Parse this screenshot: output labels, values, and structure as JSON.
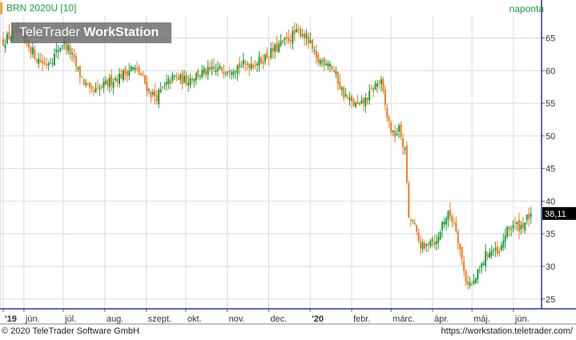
{
  "header": {
    "instrument": "BRN 2020U [10]",
    "period": "naponta"
  },
  "watermark": {
    "brand_light": "TeleTrader",
    "brand_bold": "WorkStation"
  },
  "footer": {
    "copyright": "© 2020 TeleTrader Software GmbH",
    "url": "https://workstation.teletrader.com/"
  },
  "colors": {
    "up": "#1a9e3c",
    "down": "#f27a1a",
    "grid": "#d9dbe8",
    "axis": "#2b3a8c",
    "title": "#1a9e3c",
    "accent": "#f6a21e",
    "last_price_bg": "#000000"
  },
  "chart_data": {
    "type": "candlestick",
    "title": "BRN 2020U [10]",
    "interval": "naponta",
    "last_price_label": "38,11",
    "last_price": 38.11,
    "ylim": [
      23.5,
      68.5
    ],
    "y_ticks": [
      25,
      30,
      35,
      40,
      45,
      50,
      55,
      60,
      65
    ],
    "grid": true,
    "x_ticks": [
      {
        "label": "'19",
        "bold": true,
        "t": 0.0
      },
      {
        "label": "jún.",
        "bold": false,
        "t": 0.5
      },
      {
        "label": "júl.",
        "bold": false,
        "t": 1.45
      },
      {
        "label": "aug.",
        "bold": false,
        "t": 2.45
      },
      {
        "label": "szept.",
        "bold": false,
        "t": 3.45
      },
      {
        "label": "okt.",
        "bold": false,
        "t": 4.4
      },
      {
        "label": "nov.",
        "bold": false,
        "t": 5.4
      },
      {
        "label": "dec.",
        "bold": false,
        "t": 6.4
      },
      {
        "label": "'20",
        "bold": true,
        "t": 7.4
      },
      {
        "label": "febr.",
        "bold": false,
        "t": 8.4
      },
      {
        "label": "márc.",
        "bold": false,
        "t": 9.35
      },
      {
        "label": "ápr.",
        "bold": false,
        "t": 10.35
      },
      {
        "label": "máj.",
        "bold": false,
        "t": 11.3
      },
      {
        "label": "jún.",
        "bold": false,
        "t": 12.3
      }
    ],
    "close_path": [
      {
        "t": 0.0,
        "c": 64.5
      },
      {
        "t": 0.3,
        "c": 66.0
      },
      {
        "t": 0.6,
        "c": 64.0
      },
      {
        "t": 0.8,
        "c": 62.0
      },
      {
        "t": 1.0,
        "c": 61.0
      },
      {
        "t": 1.2,
        "c": 62.0
      },
      {
        "t": 1.45,
        "c": 64.5
      },
      {
        "t": 1.6,
        "c": 63.0
      },
      {
        "t": 1.8,
        "c": 60.0
      },
      {
        "t": 2.1,
        "c": 56.5
      },
      {
        "t": 2.3,
        "c": 57.0
      },
      {
        "t": 2.6,
        "c": 58.5
      },
      {
        "t": 2.9,
        "c": 59.5
      },
      {
        "t": 3.1,
        "c": 60.5
      },
      {
        "t": 3.3,
        "c": 59.5
      },
      {
        "t": 3.55,
        "c": 56.5
      },
      {
        "t": 3.7,
        "c": 56.0
      },
      {
        "t": 3.9,
        "c": 57.5
      },
      {
        "t": 4.1,
        "c": 59.0
      },
      {
        "t": 4.4,
        "c": 58.5
      },
      {
        "t": 4.7,
        "c": 59.5
      },
      {
        "t": 5.1,
        "c": 60.0
      },
      {
        "t": 5.5,
        "c": 60.5
      },
      {
        "t": 5.9,
        "c": 61.0
      },
      {
        "t": 6.2,
        "c": 61.5
      },
      {
        "t": 6.5,
        "c": 63.0
      },
      {
        "t": 6.8,
        "c": 64.5
      },
      {
        "t": 7.0,
        "c": 65.5
      },
      {
        "t": 7.2,
        "c": 66.0
      },
      {
        "t": 7.4,
        "c": 64.0
      },
      {
        "t": 7.55,
        "c": 61.5
      },
      {
        "t": 7.7,
        "c": 61.5
      },
      {
        "t": 7.85,
        "c": 61.5
      },
      {
        "t": 8.0,
        "c": 59.5
      },
      {
        "t": 8.2,
        "c": 56.5
      },
      {
        "t": 8.4,
        "c": 55.0
      },
      {
        "t": 8.6,
        "c": 54.5
      },
      {
        "t": 8.8,
        "c": 56.0
      },
      {
        "t": 9.0,
        "c": 58.0
      },
      {
        "t": 9.1,
        "c": 58.5
      },
      {
        "t": 9.25,
        "c": 53.0
      },
      {
        "t": 9.4,
        "c": 50.0
      },
      {
        "t": 9.55,
        "c": 51.0
      },
      {
        "t": 9.7,
        "c": 47.0
      },
      {
        "t": 9.78,
        "c": 36.5
      },
      {
        "t": 9.85,
        "c": 37.5
      },
      {
        "t": 10.0,
        "c": 34.0
      },
      {
        "t": 10.15,
        "c": 32.5
      },
      {
        "t": 10.3,
        "c": 34.5
      },
      {
        "t": 10.45,
        "c": 33.5
      },
      {
        "t": 10.6,
        "c": 37.0
      },
      {
        "t": 10.75,
        "c": 38.0
      },
      {
        "t": 10.9,
        "c": 36.5
      },
      {
        "t": 11.0,
        "c": 33.0
      },
      {
        "t": 11.1,
        "c": 29.5
      },
      {
        "t": 11.15,
        "c": 28.0
      },
      {
        "t": 11.3,
        "c": 27.0
      },
      {
        "t": 11.5,
        "c": 29.5
      },
      {
        "t": 11.65,
        "c": 32.0
      },
      {
        "t": 11.8,
        "c": 32.5
      },
      {
        "t": 11.95,
        "c": 31.5
      },
      {
        "t": 12.1,
        "c": 35.0
      },
      {
        "t": 12.3,
        "c": 36.5
      },
      {
        "t": 12.45,
        "c": 36.0
      },
      {
        "t": 12.6,
        "c": 37.0
      },
      {
        "t": 12.72,
        "c": 38.11
      }
    ]
  }
}
